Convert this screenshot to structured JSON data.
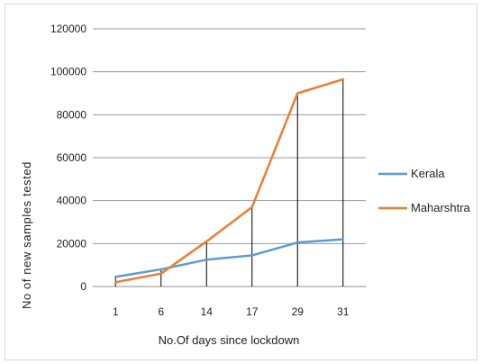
{
  "chart_data": {
    "type": "line",
    "categories": [
      "1",
      "6",
      "14",
      "17",
      "29",
      "31"
    ],
    "series": [
      {
        "name": "Kerala",
        "color": "#5b9bd5",
        "values": [
          4500,
          8000,
          12500,
          14500,
          20500,
          22000
        ]
      },
      {
        "name": "Maharshtra",
        "color": "#ed7d31",
        "values": [
          2000,
          6000,
          21000,
          37000,
          90000,
          96500
        ]
      }
    ],
    "xlabel": "No.Of days since lockdown",
    "ylabel": "No of new samples tested",
    "ylim": [
      0,
      120000
    ],
    "yticks": [
      "0",
      "20000",
      "40000",
      "60000",
      "80000",
      "100000",
      "120000"
    ],
    "grid": true,
    "drop_lines": true,
    "legend": "right"
  }
}
